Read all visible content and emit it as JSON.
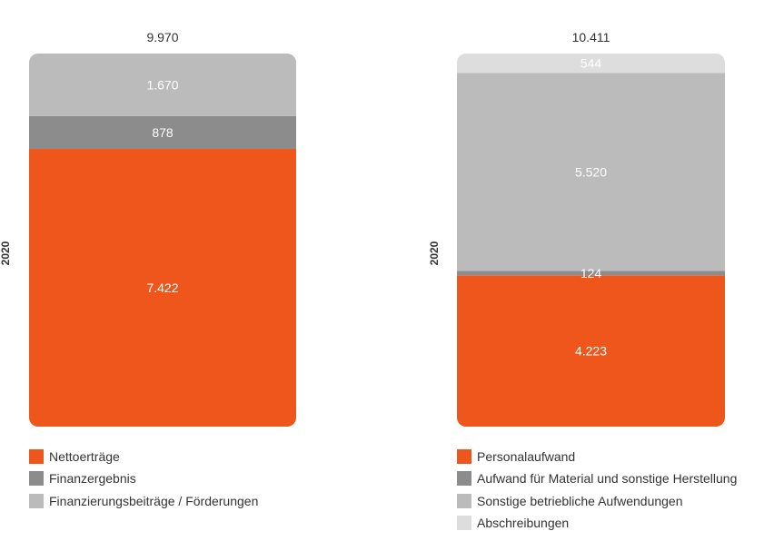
{
  "chart_data": [
    {
      "type": "bar",
      "stacked": true,
      "categories": [
        "2020"
      ],
      "total": "9.970",
      "series": [
        {
          "name": "Nettoerträge",
          "value": 7422,
          "label": "7.422",
          "color": "#ee561b"
        },
        {
          "name": "Finanzergebnis",
          "value": 878,
          "label": "878",
          "color": "#8c8c8c"
        },
        {
          "name": "Finanzierungsbeiträge / Förderungen",
          "value": 1670,
          "label": "1.670",
          "color": "#bbbbbb"
        }
      ]
    },
    {
      "type": "bar",
      "stacked": true,
      "categories": [
        "2020"
      ],
      "total": "10.411",
      "series": [
        {
          "name": "Personalaufwand",
          "value": 4223,
          "label": "4.223",
          "color": "#ee561b"
        },
        {
          "name": "Aufwand für Material und sonstige Herstellung",
          "value": 124,
          "label": "124",
          "color": "#8c8c8c"
        },
        {
          "name": "Sonstige betriebliche Aufwendungen",
          "value": 5520,
          "label": "5.520",
          "color": "#bbbbbb"
        },
        {
          "name": "Abschreibungen",
          "value": 544,
          "label": "544",
          "color": "#dddddd"
        }
      ]
    }
  ]
}
